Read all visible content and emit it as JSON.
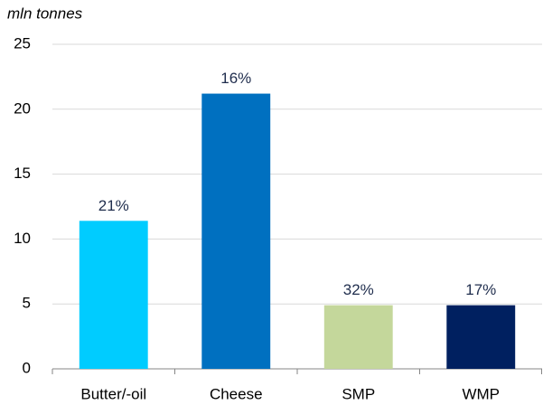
{
  "chart_data": {
    "type": "bar",
    "y_axis_label": "mln tonnes",
    "categories": [
      "Butter/-oil",
      "Cheese",
      "SMP",
      "WMP"
    ],
    "values": [
      11.4,
      21.2,
      4.9,
      4.9
    ],
    "annotations": [
      "21%",
      "16%",
      "32%",
      "17%"
    ],
    "colors": [
      "#00ccff",
      "#0070c0",
      "#c4d79b",
      "#002060"
    ],
    "ylim": [
      0,
      25
    ],
    "yticks": [
      0,
      5,
      10,
      15,
      20,
      25
    ],
    "grid": true
  }
}
